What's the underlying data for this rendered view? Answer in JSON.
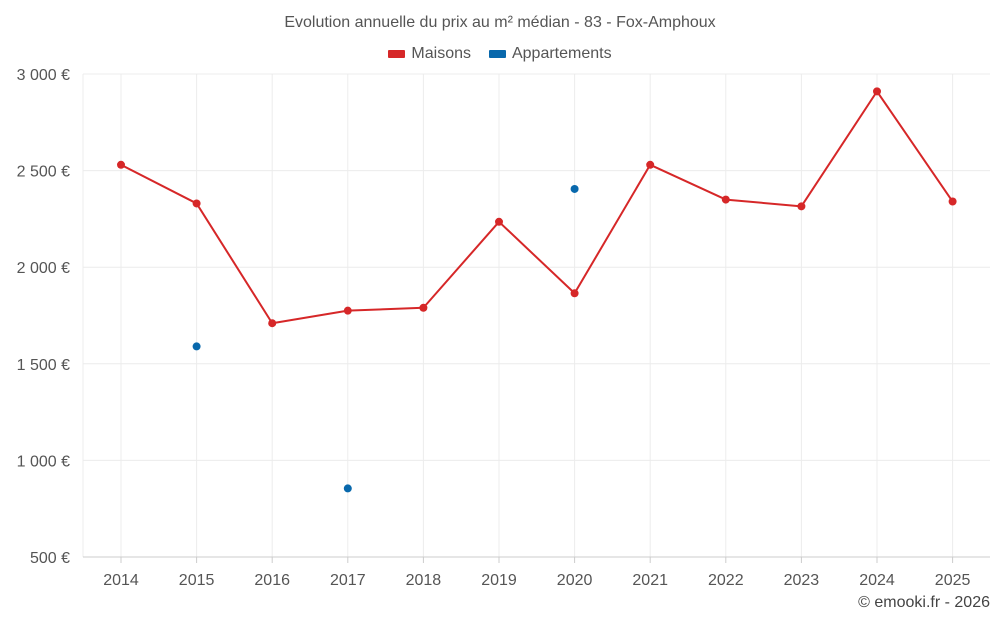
{
  "chart_data": {
    "type": "line",
    "title": "Evolution annuelle du prix au m² médian - 83 - Fox-Amphoux",
    "xlabel": "",
    "ylabel": "",
    "categories": [
      "2014",
      "2015",
      "2016",
      "2017",
      "2018",
      "2019",
      "2020",
      "2021",
      "2022",
      "2023",
      "2024",
      "2025"
    ],
    "ylim": [
      500,
      3000
    ],
    "yticks": [
      500,
      1000,
      1500,
      2000,
      2500,
      3000
    ],
    "ytick_labels": [
      "500 €",
      "1 000 €",
      "1 500 €",
      "2 000 €",
      "2 500 €",
      "3 000 €"
    ],
    "grid": true,
    "legend_position": "top-center",
    "series": [
      {
        "name": "Maisons",
        "color": "#d62728",
        "values": [
          2530,
          2330,
          1710,
          1775,
          1790,
          2235,
          1865,
          2530,
          2350,
          2315,
          2910,
          2340
        ]
      },
      {
        "name": "Appartements",
        "color": "#0868ac",
        "values": [
          null,
          1590,
          null,
          855,
          null,
          null,
          2405,
          null,
          null,
          null,
          null,
          null
        ]
      }
    ]
  },
  "footer": {
    "copyright": "© emooki.fr - 2026"
  }
}
